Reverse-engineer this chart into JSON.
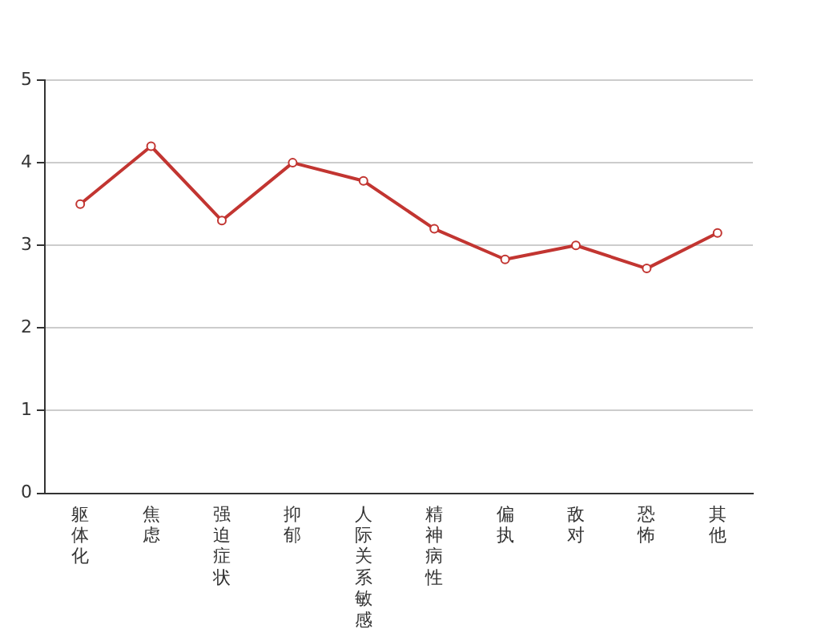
{
  "chart_data": {
    "type": "line",
    "categories": [
      "躯体化",
      "焦虑",
      "强迫症状",
      "抑郁",
      "人际关系敏感",
      "精神病性",
      "偏执",
      "敌对",
      "恐怖",
      "其他"
    ],
    "series": [
      {
        "color": "#c23531",
        "values": [
          3.5,
          4.2,
          3.3,
          4.0,
          3.78,
          3.2,
          2.83,
          3.0,
          2.72,
          3.15
        ]
      }
    ],
    "ylim": [
      0,
      5
    ],
    "yticks": [
      0,
      1,
      2,
      3,
      4,
      5
    ],
    "grid": "y",
    "legend": false,
    "marker": "circle",
    "line_style": "solid"
  }
}
